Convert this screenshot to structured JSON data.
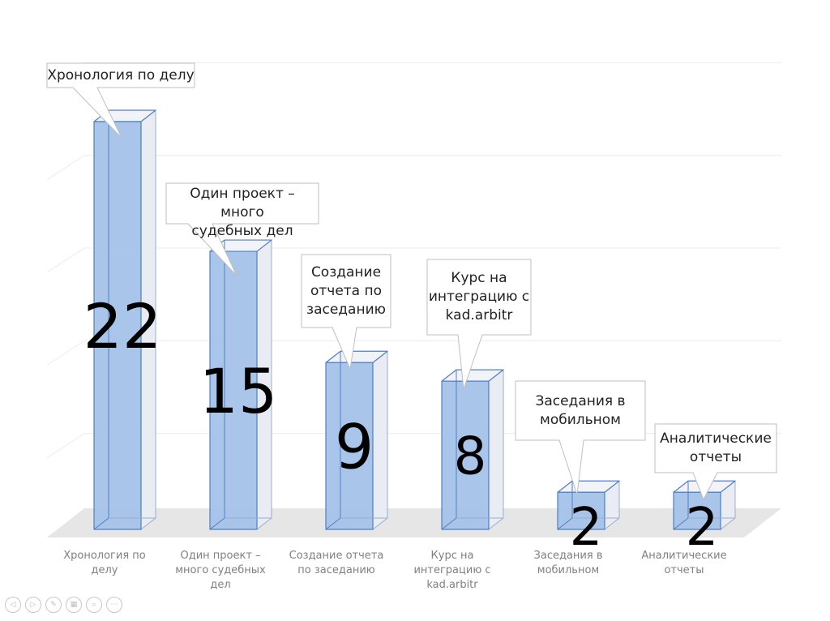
{
  "chart_data": {
    "type": "bar",
    "categories": [
      "Хронология по делу",
      "Один проект – много судебных дел",
      "Создание отчета по заседанию",
      "Курс на интеграцию с kad.arbitr",
      "Заседания в мобильном",
      "Аналитические отчеты"
    ],
    "values": [
      22,
      15,
      9,
      8,
      2,
      2
    ],
    "ylim": [
      0,
      25
    ],
    "grid": true,
    "legend": "none",
    "three_d": true,
    "colors": {
      "bar_front": "#a4c2e8",
      "bar_side": "#e9ecf3",
      "bar_top": "#f1f3f8",
      "bar_edge": "#4f7fc4",
      "floor": "#e6e6e6",
      "grid": "#ececec"
    },
    "data_labels": [
      "22",
      "15",
      "9",
      "8",
      "2",
      "2"
    ],
    "callouts": [
      [
        "Хронология по делу"
      ],
      [
        "Один проект – много",
        "судебных дел"
      ],
      [
        "Создание",
        "отчета по",
        "заседанию"
      ],
      [
        "Курс на",
        "интеграцию с",
        "kad.arbitr"
      ],
      [
        "Заседания в",
        "мобильном"
      ],
      [
        "Аналитические",
        "отчеты"
      ]
    ],
    "axis_labels": [
      [
        "Хронология по",
        "делу"
      ],
      [
        "Один проект –",
        "много судебных",
        "дел"
      ],
      [
        "Создание отчета",
        "по заседанию"
      ],
      [
        "Курс на",
        "интеграцию с",
        "kad.arbitr"
      ],
      [
        "Заседания в",
        "мобильном"
      ],
      [
        "Аналитические",
        "отчеты"
      ]
    ]
  },
  "slideshow_controls": [
    {
      "name": "previous-icon",
      "glyph": "◁"
    },
    {
      "name": "next-icon",
      "glyph": "▷"
    },
    {
      "name": "pen-icon",
      "glyph": "✎"
    },
    {
      "name": "slides-grid-icon",
      "glyph": "▦"
    },
    {
      "name": "zoom-icon",
      "glyph": "⌕"
    },
    {
      "name": "more-icon",
      "glyph": "⋯"
    }
  ]
}
